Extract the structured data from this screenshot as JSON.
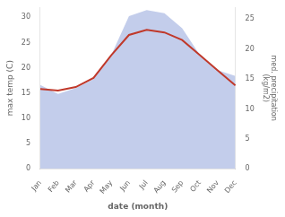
{
  "chart_data": {
    "type": "line",
    "xlabel": "date (month)",
    "ylabel": "max temp (C)",
    "y2label": "med. precipitation\n(kg/m2)",
    "categories": [
      "Jan",
      "Feb",
      "Mar",
      "Apr",
      "May",
      "Jun",
      "Jul",
      "Aug",
      "Sep",
      "Oct",
      "Nov",
      "Dec"
    ],
    "series": [
      {
        "type": "line",
        "color": "#c0392b",
        "values": [
          15.8,
          15.5,
          16.2,
          18.0,
          22.5,
          26.5,
          27.5,
          27.0,
          25.5,
          22.5,
          19.5,
          16.5
        ]
      },
      {
        "type": "area",
        "color": "#b8c4e8",
        "axis": "y2",
        "values": [
          14.0,
          12.5,
          13.5,
          15.0,
          19.0,
          25.5,
          26.5,
          26.0,
          23.5,
          19.0,
          16.5,
          15.5
        ]
      }
    ],
    "ylim": [
      0,
      32
    ],
    "yticks": [
      0,
      5,
      10,
      15,
      20,
      25,
      30
    ],
    "y2lim": [
      0,
      27
    ],
    "y2ticks": [
      0,
      5,
      10,
      15,
      20,
      25
    ],
    "grid": false
  }
}
